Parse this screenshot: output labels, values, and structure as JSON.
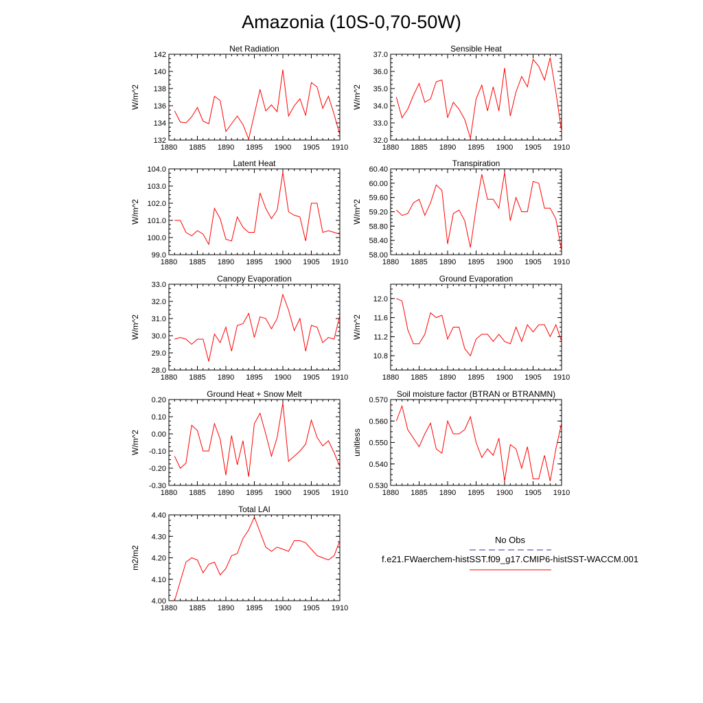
{
  "figure": {
    "title": "Amazonia (10S-0,70-50W)"
  },
  "legend": {
    "entries": [
      {
        "label": "No Obs",
        "color": "#3333aa",
        "dash": true
      },
      {
        "label": "f.e21.FWaerchem-histSST.f09_g17.CMIP6-histSST-WACCM.001",
        "color": "#ff0000",
        "dash": false
      }
    ]
  },
  "chart_data": [
    {
      "type": "line",
      "title": "Net Radiation",
      "ylabel": "W/m^2",
      "xlim": [
        1880,
        1910
      ],
      "ylim": [
        132,
        142
      ],
      "x_ticks": [
        "1880",
        "1885",
        "1890",
        "1895",
        "1900",
        "1905",
        "1910"
      ],
      "y_ticks": [
        "132",
        "134",
        "136",
        "138",
        "140",
        "142"
      ],
      "series": [
        {
          "color": "#ff0000",
          "x_start": 1881,
          "values": [
            135.4,
            134.1,
            134.0,
            134.7,
            135.8,
            134.2,
            133.9,
            137.1,
            136.6,
            133.0,
            133.9,
            134.8,
            133.8,
            132.1,
            135.0,
            137.9,
            135.4,
            136.1,
            135.3,
            140.2,
            134.8,
            136.0,
            136.8,
            134.9,
            138.7,
            138.2,
            135.7,
            137.1,
            135.0,
            132.6
          ]
        }
      ]
    },
    {
      "type": "line",
      "title": "Sensible Heat",
      "ylabel": "W/m^2",
      "xlim": [
        1880,
        1910
      ],
      "ylim": [
        32,
        37
      ],
      "x_ticks": [
        "1880",
        "1885",
        "1890",
        "1895",
        "1900",
        "1905",
        "1910"
      ],
      "y_ticks": [
        "32.0",
        "33.0",
        "34.0",
        "35.0",
        "36.0",
        "37.0"
      ],
      "series": [
        {
          "color": "#ff0000",
          "x_start": 1881,
          "values": [
            34.5,
            33.3,
            33.8,
            34.6,
            35.3,
            34.2,
            34.4,
            35.4,
            35.5,
            33.3,
            34.2,
            33.8,
            33.2,
            32.1,
            34.4,
            35.2,
            33.7,
            35.1,
            33.7,
            36.2,
            33.4,
            34.8,
            35.7,
            35.1,
            36.7,
            36.3,
            35.5,
            36.8,
            34.8,
            32.5
          ]
        }
      ]
    },
    {
      "type": "line",
      "title": "Latent Heat",
      "ylabel": "W/m^2",
      "xlim": [
        1880,
        1910
      ],
      "ylim": [
        99,
        104
      ],
      "x_ticks": [
        "1880",
        "1885",
        "1890",
        "1895",
        "1900",
        "1905",
        "1910"
      ],
      "y_ticks": [
        "99.0",
        "100.0",
        "101.0",
        "102.0",
        "103.0",
        "104.0"
      ],
      "series": [
        {
          "color": "#ff0000",
          "x_start": 1881,
          "values": [
            101.0,
            101.0,
            100.3,
            100.1,
            100.4,
            100.2,
            99.6,
            101.7,
            101.1,
            99.9,
            99.8,
            101.2,
            100.6,
            100.3,
            100.3,
            102.6,
            101.7,
            101.1,
            101.6,
            103.8,
            101.5,
            101.3,
            101.2,
            99.8,
            102.0,
            102.0,
            100.3,
            100.4,
            100.3,
            100.2
          ]
        }
      ]
    },
    {
      "type": "line",
      "title": "Transpiration",
      "ylabel": "W/m^2",
      "xlim": [
        1880,
        1910
      ],
      "ylim": [
        58.0,
        60.4
      ],
      "x_ticks": [
        "1880",
        "1885",
        "1890",
        "1895",
        "1900",
        "1905",
        "1910"
      ],
      "y_ticks": [
        "58.00",
        "58.40",
        "58.80",
        "59.20",
        "59.60",
        "60.00",
        "60.40"
      ],
      "series": [
        {
          "color": "#ff0000",
          "x_start": 1881,
          "values": [
            59.25,
            59.1,
            59.15,
            59.45,
            59.55,
            59.1,
            59.45,
            59.95,
            59.8,
            58.3,
            59.15,
            59.25,
            58.95,
            58.2,
            59.3,
            60.25,
            59.55,
            59.55,
            59.3,
            60.3,
            58.95,
            59.6,
            59.2,
            59.2,
            60.05,
            60.0,
            59.3,
            59.3,
            59.0,
            58.1
          ]
        }
      ]
    },
    {
      "type": "line",
      "title": "Canopy Evaporation",
      "ylabel": "W/m^2",
      "xlim": [
        1880,
        1910
      ],
      "ylim": [
        28,
        33
      ],
      "x_ticks": [
        "1880",
        "1885",
        "1890",
        "1895",
        "1900",
        "1905",
        "1910"
      ],
      "y_ticks": [
        "28.0",
        "29.0",
        "30.0",
        "31.0",
        "32.0",
        "33.0"
      ],
      "series": [
        {
          "color": "#ff0000",
          "x_start": 1881,
          "values": [
            29.8,
            29.9,
            29.8,
            29.5,
            29.8,
            29.8,
            28.5,
            30.1,
            29.6,
            30.5,
            29.1,
            30.6,
            30.7,
            31.3,
            29.9,
            31.1,
            31.0,
            30.4,
            31.0,
            32.4,
            31.5,
            30.3,
            31.0,
            29.1,
            30.6,
            30.5,
            29.6,
            29.9,
            29.8,
            31.2
          ]
        }
      ]
    },
    {
      "type": "line",
      "title": "Ground Evaporation",
      "ylabel": "W/m^2",
      "xlim": [
        1880,
        1910
      ],
      "ylim": [
        10.5,
        12.3
      ],
      "x_ticks": [
        "1880",
        "1885",
        "1890",
        "1895",
        "1900",
        "1905",
        "1910"
      ],
      "y_ticks": [
        "10.8",
        "11.2",
        "11.6",
        "12.0"
      ],
      "series": [
        {
          "color": "#ff0000",
          "x_start": 1881,
          "values": [
            12.0,
            11.95,
            11.35,
            11.05,
            11.05,
            11.25,
            11.7,
            11.6,
            11.65,
            11.15,
            11.4,
            11.4,
            10.95,
            10.8,
            11.15,
            11.25,
            11.25,
            11.1,
            11.25,
            11.1,
            11.05,
            11.4,
            11.1,
            11.45,
            11.3,
            11.45,
            11.45,
            11.2,
            11.45,
            11.1
          ]
        }
      ]
    },
    {
      "type": "line",
      "title": "Ground Heat + Snow Melt",
      "ylabel": "W/m^2",
      "xlim": [
        1880,
        1910
      ],
      "ylim": [
        -0.3,
        0.2
      ],
      "x_ticks": [
        "1880",
        "1885",
        "1890",
        "1895",
        "1900",
        "1905",
        "1910"
      ],
      "y_ticks": [
        "-0.30",
        "-0.20",
        "-0.10",
        "0.00",
        "0.10",
        "0.20"
      ],
      "series": [
        {
          "color": "#ff0000",
          "x_start": 1881,
          "values": [
            -0.13,
            -0.2,
            -0.17,
            0.05,
            0.02,
            -0.1,
            -0.1,
            0.06,
            -0.03,
            -0.24,
            -0.01,
            -0.18,
            -0.04,
            -0.25,
            0.06,
            0.12,
            0.0,
            -0.13,
            -0.02,
            0.18,
            -0.16,
            -0.13,
            -0.1,
            -0.06,
            0.08,
            -0.02,
            -0.07,
            -0.04,
            -0.11,
            -0.19
          ]
        }
      ]
    },
    {
      "type": "line",
      "title": "Soil moisture factor (BTRAN or BTRANMN)",
      "ylabel": "unitless",
      "xlim": [
        1880,
        1910
      ],
      "ylim": [
        0.53,
        0.57
      ],
      "x_ticks": [
        "1880",
        "1885",
        "1890",
        "1895",
        "1900",
        "1905",
        "1910"
      ],
      "y_ticks": [
        "0.530",
        "0.540",
        "0.550",
        "0.560",
        "0.570"
      ],
      "series": [
        {
          "color": "#ff0000",
          "x_start": 1881,
          "values": [
            0.56,
            0.567,
            0.556,
            0.552,
            0.548,
            0.554,
            0.559,
            0.547,
            0.545,
            0.56,
            0.554,
            0.554,
            0.556,
            0.562,
            0.55,
            0.543,
            0.547,
            0.544,
            0.552,
            0.532,
            0.549,
            0.547,
            0.538,
            0.548,
            0.533,
            0.533,
            0.544,
            0.532,
            0.547,
            0.559
          ]
        }
      ]
    },
    {
      "type": "line",
      "title": "Total LAI",
      "ylabel": "m2/m2",
      "xlim": [
        1880,
        1910
      ],
      "ylim": [
        4.0,
        4.4
      ],
      "x_ticks": [
        "1880",
        "1885",
        "1890",
        "1895",
        "1900",
        "1905",
        "1910"
      ],
      "y_ticks": [
        "4.00",
        "4.10",
        "4.20",
        "4.30",
        "4.40"
      ],
      "series": [
        {
          "color": "#ff0000",
          "x_start": 1881,
          "values": [
            4.0,
            4.09,
            4.18,
            4.2,
            4.19,
            4.13,
            4.17,
            4.18,
            4.12,
            4.15,
            4.21,
            4.22,
            4.29,
            4.33,
            4.39,
            4.32,
            4.25,
            4.23,
            4.25,
            4.24,
            4.23,
            4.28,
            4.28,
            4.27,
            4.24,
            4.21,
            4.2,
            4.19,
            4.21,
            4.28
          ]
        }
      ]
    }
  ]
}
